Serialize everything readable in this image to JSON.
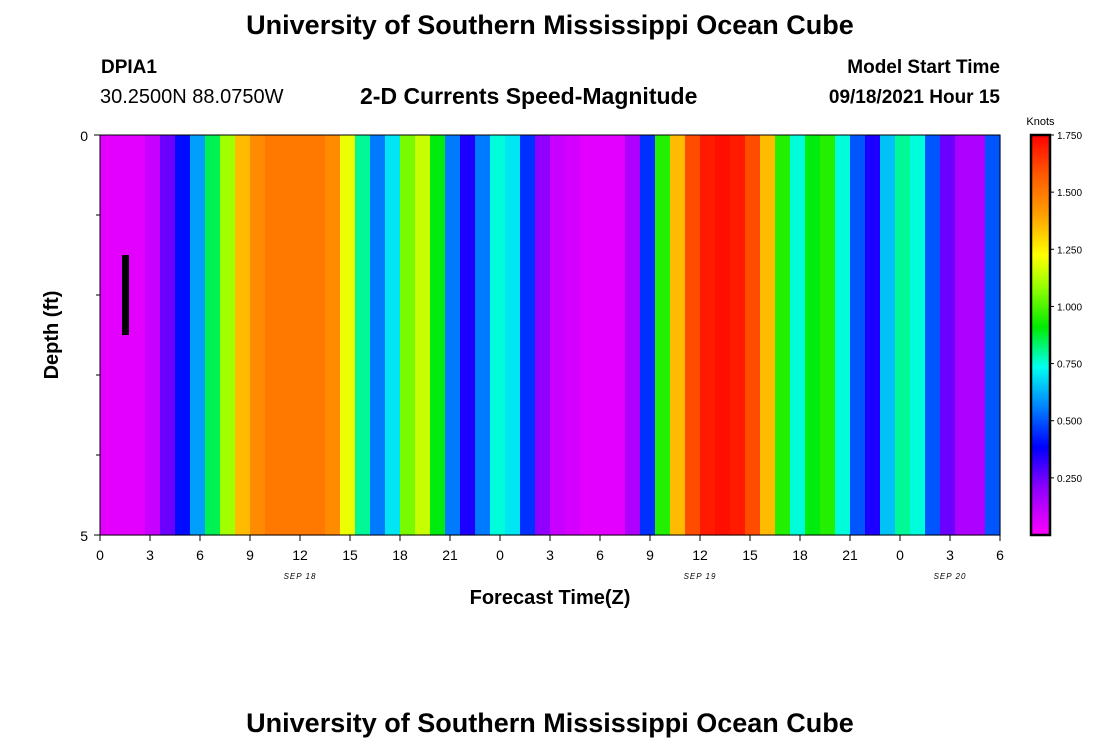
{
  "header": {
    "top_title": "University of Southern Mississippi Ocean Cube",
    "bottom_title": "University of Southern Mississippi Ocean Cube",
    "station_id": "DPIA1",
    "coordinates": "30.2500N  88.0750W",
    "subtitle": "2-D Currents Speed-Magnitude",
    "model_start_label": "Model Start Time",
    "model_start_value": "09/18/2021 Hour 15"
  },
  "chart_data": {
    "type": "heatmap",
    "title": "2-D Currents Speed-Magnitude",
    "xlabel": "Forecast Time(Z)",
    "ylabel": "Depth (ft)",
    "x_hours_range": [
      0,
      54
    ],
    "xtick_hours": [
      0,
      3,
      6,
      9,
      12,
      15,
      18,
      21,
      24,
      27,
      30,
      33,
      36,
      39,
      42,
      45,
      48,
      51,
      54
    ],
    "xtick_labels": [
      "0",
      "3",
      "6",
      "9",
      "12",
      "15",
      "18",
      "21",
      "0",
      "3",
      "6",
      "9",
      "12",
      "15",
      "18",
      "21",
      "0",
      "3",
      "6"
    ],
    "date_labels": [
      {
        "hour": 12,
        "text": "SEP 18"
      },
      {
        "hour": 36,
        "text": "SEP 19"
      },
      {
        "hour": 51,
        "text": "SEP 20"
      }
    ],
    "ylim": [
      0,
      5
    ],
    "ytick_labels": [
      "0",
      "5"
    ],
    "y_minor_ticks": [
      1,
      2,
      3,
      4
    ],
    "depth_rows": 5,
    "marker": {
      "hour": 1.5,
      "depth_from": 1.5,
      "depth_to": 2.5
    },
    "colorbar": {
      "unit": "Knots",
      "max": 1.75,
      "tick_values": [
        1.75,
        1.5,
        1.25,
        1.0,
        0.75,
        0.5,
        0.25
      ],
      "tick_labels": [
        "1.750",
        "1.500",
        "1.250",
        "1.000",
        "0.750",
        "0.500",
        "0.250"
      ]
    },
    "speed_grid": [
      [
        0.05,
        0.05,
        0.05,
        0.1,
        0.25,
        0.4,
        0.6,
        0.85,
        1.1,
        1.35,
        1.45,
        1.5,
        1.5,
        1.5,
        1.5,
        1.45,
        1.2,
        0.8,
        0.55,
        0.7,
        1.05,
        1.15,
        0.9,
        0.55,
        0.35,
        0.55,
        0.75,
        0.7,
        0.45,
        0.2,
        0.1,
        0.08,
        0.05,
        0.05,
        0.05,
        0.15,
        0.45,
        0.95,
        1.35,
        1.6,
        1.7,
        1.72,
        1.7,
        1.6,
        1.35,
        0.95,
        0.75,
        0.9,
        0.95,
        0.75,
        0.5,
        0.35,
        0.65,
        0.8,
        0.75,
        0.5,
        0.25,
        0.15,
        0.15,
        0.5
      ],
      [
        0.05,
        0.05,
        0.05,
        0.1,
        0.25,
        0.4,
        0.6,
        0.85,
        1.1,
        1.35,
        1.45,
        1.5,
        1.5,
        1.5,
        1.5,
        1.45,
        1.2,
        0.8,
        0.55,
        0.7,
        1.05,
        1.15,
        0.9,
        0.55,
        0.35,
        0.55,
        0.75,
        0.7,
        0.45,
        0.2,
        0.1,
        0.08,
        0.05,
        0.05,
        0.05,
        0.15,
        0.45,
        0.95,
        1.35,
        1.6,
        1.7,
        1.72,
        1.7,
        1.6,
        1.35,
        0.95,
        0.75,
        0.9,
        0.95,
        0.75,
        0.5,
        0.35,
        0.65,
        0.8,
        0.75,
        0.5,
        0.25,
        0.15,
        0.15,
        0.5
      ],
      [
        0.05,
        0.05,
        0.05,
        0.1,
        0.25,
        0.4,
        0.6,
        0.85,
        1.1,
        1.35,
        1.45,
        1.5,
        1.5,
        1.5,
        1.5,
        1.45,
        1.2,
        0.8,
        0.55,
        0.7,
        1.05,
        1.15,
        0.9,
        0.55,
        0.35,
        0.55,
        0.75,
        0.7,
        0.45,
        0.2,
        0.1,
        0.08,
        0.05,
        0.05,
        0.05,
        0.15,
        0.45,
        0.95,
        1.35,
        1.6,
        1.7,
        1.72,
        1.7,
        1.6,
        1.35,
        0.95,
        0.75,
        0.9,
        0.95,
        0.75,
        0.5,
        0.35,
        0.65,
        0.8,
        0.75,
        0.5,
        0.25,
        0.15,
        0.15,
        0.5
      ],
      [
        0.05,
        0.05,
        0.05,
        0.1,
        0.25,
        0.4,
        0.6,
        0.85,
        1.1,
        1.35,
        1.45,
        1.5,
        1.5,
        1.5,
        1.5,
        1.45,
        1.2,
        0.8,
        0.55,
        0.7,
        1.05,
        1.15,
        0.9,
        0.55,
        0.35,
        0.55,
        0.75,
        0.7,
        0.45,
        0.2,
        0.1,
        0.08,
        0.05,
        0.05,
        0.05,
        0.15,
        0.45,
        0.95,
        1.35,
        1.6,
        1.7,
        1.72,
        1.7,
        1.6,
        1.35,
        0.95,
        0.75,
        0.9,
        0.95,
        0.75,
        0.5,
        0.35,
        0.65,
        0.8,
        0.75,
        0.5,
        0.25,
        0.15,
        0.15,
        0.5
      ],
      [
        0.05,
        0.05,
        0.05,
        0.1,
        0.25,
        0.4,
        0.6,
        0.85,
        1.1,
        1.35,
        1.45,
        1.5,
        1.5,
        1.5,
        1.5,
        1.45,
        1.2,
        0.8,
        0.55,
        0.7,
        1.05,
        1.15,
        0.9,
        0.55,
        0.35,
        0.55,
        0.75,
        0.7,
        0.45,
        0.2,
        0.1,
        0.08,
        0.05,
        0.05,
        0.05,
        0.15,
        0.45,
        0.95,
        1.35,
        1.6,
        1.7,
        1.72,
        1.7,
        1.6,
        1.35,
        0.95,
        0.75,
        0.9,
        0.95,
        0.75,
        0.5,
        0.35,
        0.65,
        0.8,
        0.75,
        0.5,
        0.25,
        0.15,
        0.15,
        0.5
      ]
    ]
  }
}
